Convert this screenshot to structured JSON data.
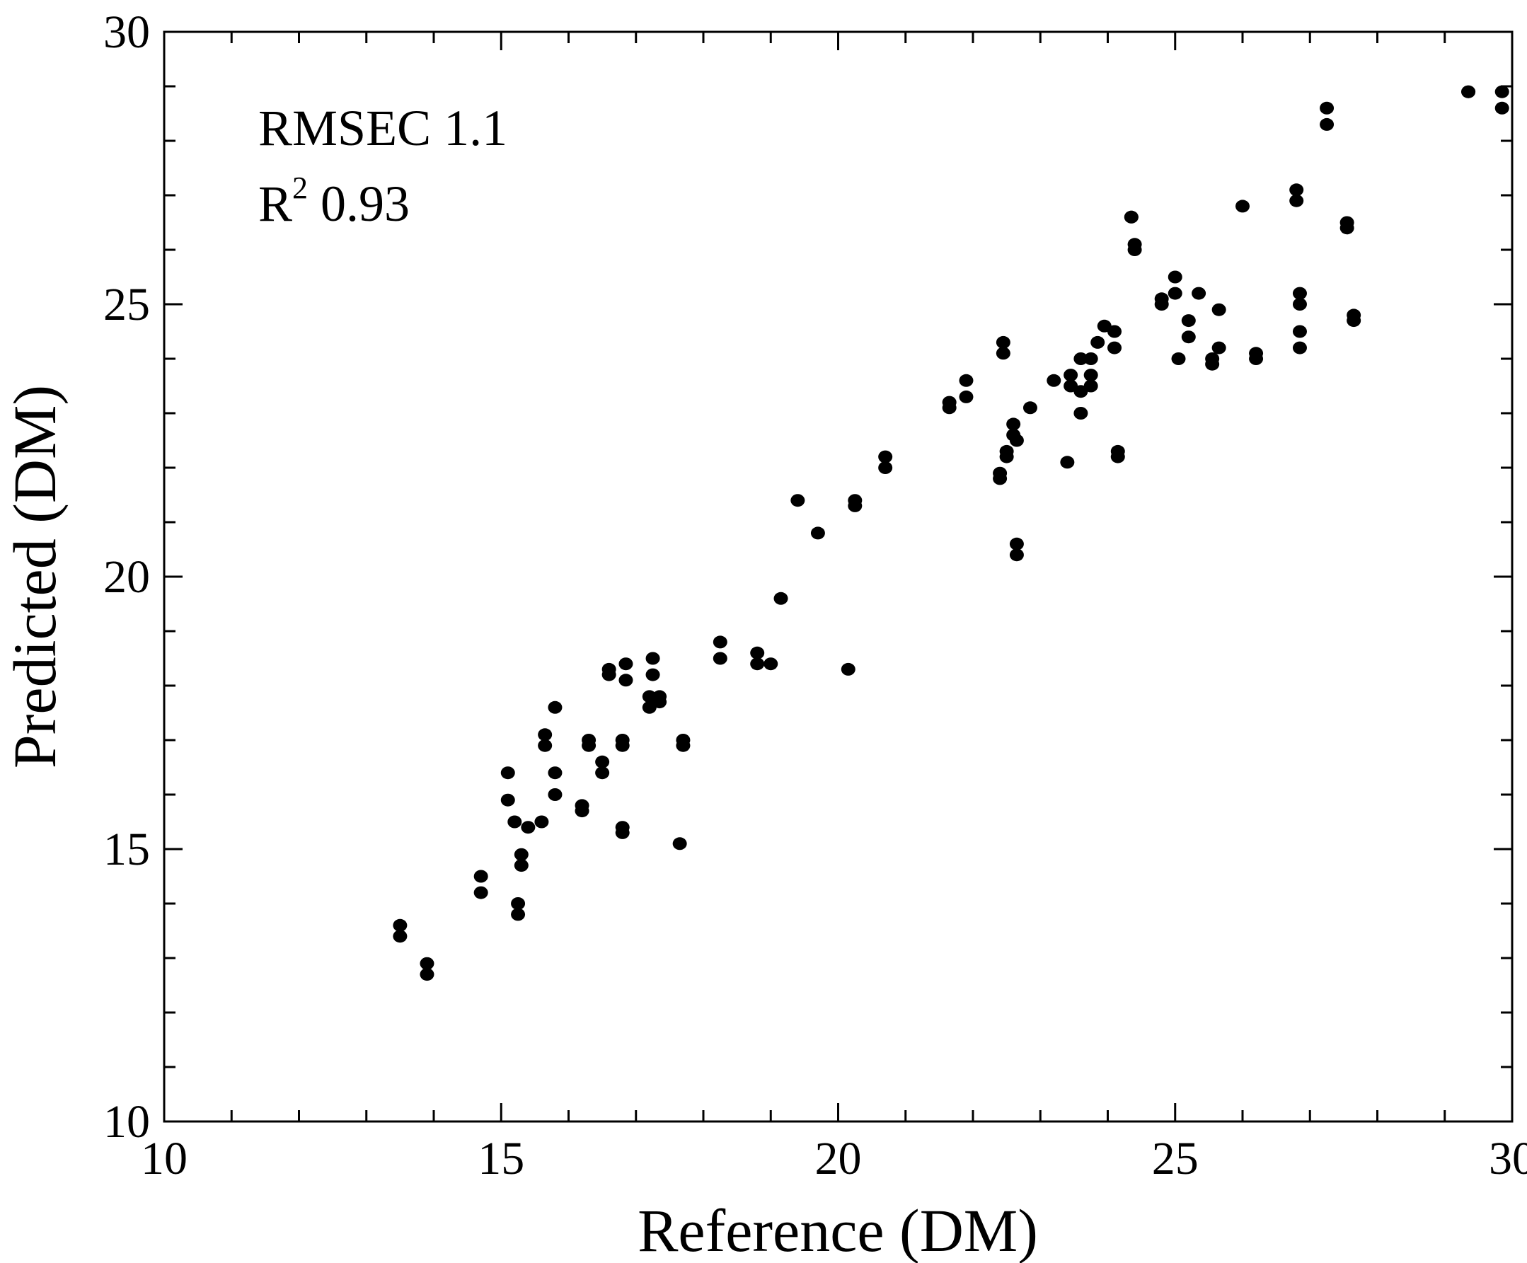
{
  "chart_data": {
    "type": "scatter",
    "title": "",
    "xlabel": "Reference (DM)",
    "ylabel": "Predicted (DM)",
    "xlim": [
      10,
      30
    ],
    "ylim": [
      10,
      30
    ],
    "x_ticks": [
      10,
      15,
      20,
      25,
      30
    ],
    "y_ticks": [
      10,
      15,
      20,
      25,
      30
    ],
    "x_ticks_labels": [
      "10",
      "15",
      "20",
      "25",
      "30"
    ],
    "y_ticks_labels": [
      "10",
      "15",
      "20",
      "25",
      "30"
    ],
    "minor_tick_step": 1,
    "grid": false,
    "marker_color": "#000000",
    "annotations": {
      "rmsec_text": "RMSEC 1.1",
      "r2_base": "R",
      "r2_sup": "2",
      "r2_value": " 0.93"
    },
    "points": [
      [
        13.5,
        13.6
      ],
      [
        13.5,
        13.4
      ],
      [
        13.9,
        12.9
      ],
      [
        13.9,
        12.7
      ],
      [
        14.7,
        14.5
      ],
      [
        14.7,
        14.2
      ],
      [
        15.1,
        16.4
      ],
      [
        15.1,
        15.9
      ],
      [
        15.2,
        15.5
      ],
      [
        15.25,
        14.0
      ],
      [
        15.25,
        13.8
      ],
      [
        15.3,
        14.9
      ],
      [
        15.3,
        14.7
      ],
      [
        15.4,
        15.4
      ],
      [
        15.6,
        15.5
      ],
      [
        15.65,
        17.1
      ],
      [
        15.65,
        16.9
      ],
      [
        15.8,
        17.6
      ],
      [
        15.8,
        16.4
      ],
      [
        15.8,
        16.0
      ],
      [
        16.2,
        15.8
      ],
      [
        16.2,
        15.7
      ],
      [
        16.3,
        17.0
      ],
      [
        16.3,
        16.9
      ],
      [
        16.5,
        16.6
      ],
      [
        16.5,
        16.4
      ],
      [
        16.6,
        18.3
      ],
      [
        16.6,
        18.2
      ],
      [
        16.8,
        17.0
      ],
      [
        16.8,
        16.9
      ],
      [
        16.8,
        15.4
      ],
      [
        16.8,
        15.3
      ],
      [
        16.85,
        18.4
      ],
      [
        16.85,
        18.1
      ],
      [
        17.2,
        17.8
      ],
      [
        17.2,
        17.6
      ],
      [
        17.25,
        18.5
      ],
      [
        17.25,
        18.2
      ],
      [
        17.35,
        17.8
      ],
      [
        17.35,
        17.7
      ],
      [
        17.65,
        15.1
      ],
      [
        17.7,
        17.0
      ],
      [
        17.7,
        16.9
      ],
      [
        18.25,
        18.8
      ],
      [
        18.25,
        18.5
      ],
      [
        18.8,
        18.6
      ],
      [
        18.8,
        18.4
      ],
      [
        19.0,
        18.4
      ],
      [
        19.15,
        19.6
      ],
      [
        19.4,
        21.4
      ],
      [
        19.7,
        20.8
      ],
      [
        20.15,
        18.3
      ],
      [
        20.25,
        21.4
      ],
      [
        20.25,
        21.3
      ],
      [
        20.7,
        22.2
      ],
      [
        20.7,
        22.0
      ],
      [
        21.65,
        23.2
      ],
      [
        21.65,
        23.1
      ],
      [
        21.9,
        23.6
      ],
      [
        21.9,
        23.3
      ],
      [
        22.4,
        21.9
      ],
      [
        22.4,
        21.8
      ],
      [
        22.45,
        24.3
      ],
      [
        22.45,
        24.1
      ],
      [
        22.5,
        22.3
      ],
      [
        22.5,
        22.2
      ],
      [
        22.6,
        22.8
      ],
      [
        22.6,
        22.6
      ],
      [
        22.65,
        22.5
      ],
      [
        22.65,
        20.6
      ],
      [
        22.65,
        20.4
      ],
      [
        22.85,
        23.1
      ],
      [
        23.2,
        23.6
      ],
      [
        23.4,
        22.1
      ],
      [
        23.45,
        23.7
      ],
      [
        23.45,
        23.5
      ],
      [
        23.6,
        24.0
      ],
      [
        23.6,
        23.4
      ],
      [
        23.6,
        23.0
      ],
      [
        23.75,
        24.0
      ],
      [
        23.75,
        23.7
      ],
      [
        23.75,
        23.5
      ],
      [
        23.85,
        24.3
      ],
      [
        23.95,
        24.6
      ],
      [
        24.1,
        24.5
      ],
      [
        24.1,
        24.2
      ],
      [
        24.15,
        22.3
      ],
      [
        24.15,
        22.2
      ],
      [
        24.35,
        26.6
      ],
      [
        24.35,
        26.6
      ],
      [
        24.4,
        26.1
      ],
      [
        24.4,
        26.0
      ],
      [
        24.8,
        25.1
      ],
      [
        24.8,
        25.0
      ],
      [
        25.0,
        25.5
      ],
      [
        25.0,
        25.2
      ],
      [
        25.05,
        24.0
      ],
      [
        25.2,
        24.7
      ],
      [
        25.2,
        24.4
      ],
      [
        25.35,
        25.2
      ],
      [
        25.55,
        24.0
      ],
      [
        25.55,
        23.9
      ],
      [
        25.65,
        24.9
      ],
      [
        25.65,
        24.2
      ],
      [
        26.0,
        26.8
      ],
      [
        26.2,
        24.1
      ],
      [
        26.2,
        24.0
      ],
      [
        26.8,
        27.1
      ],
      [
        26.8,
        26.9
      ],
      [
        26.85,
        25.2
      ],
      [
        26.85,
        25.0
      ],
      [
        26.85,
        24.5
      ],
      [
        26.85,
        24.2
      ],
      [
        27.25,
        28.6
      ],
      [
        27.25,
        28.3
      ],
      [
        27.55,
        26.5
      ],
      [
        27.55,
        26.4
      ],
      [
        27.65,
        24.8
      ],
      [
        27.65,
        24.7
      ],
      [
        29.35,
        28.9
      ],
      [
        29.35,
        28.9
      ],
      [
        29.85,
        28.9
      ],
      [
        29.85,
        28.6
      ]
    ]
  }
}
